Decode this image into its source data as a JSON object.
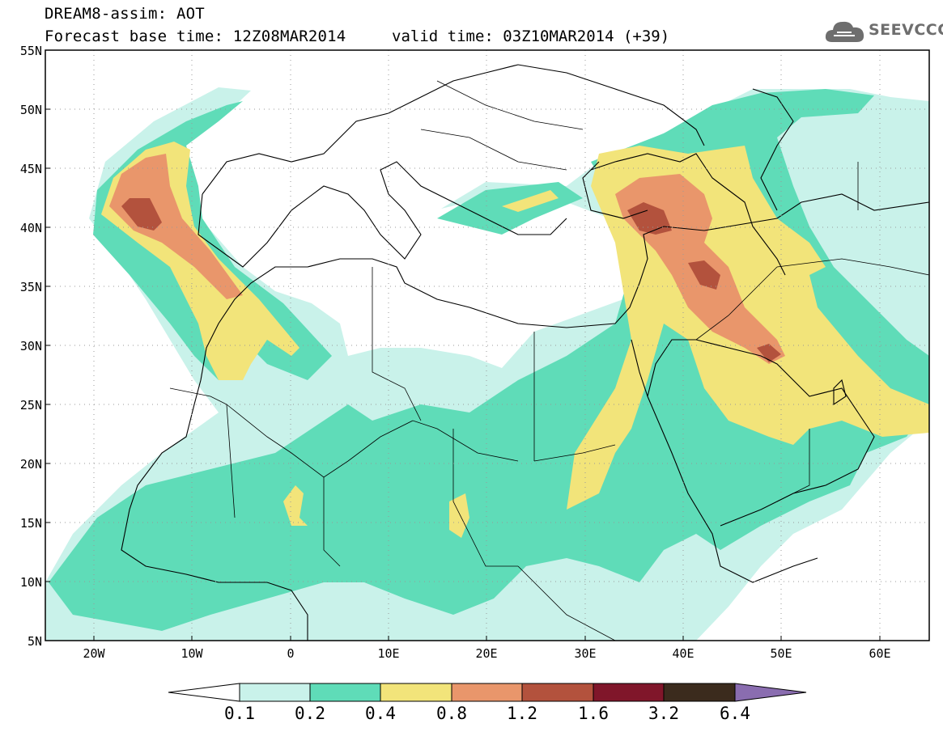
{
  "header": {
    "title": "DREAM8-assim: AOT",
    "base_time": "Forecast base time: 12Z08MAR2014",
    "valid_time": "valid time: 03Z10MAR2014 (+39)"
  },
  "logo": {
    "text": "SEEVCCC",
    "icon": "cloud-icon"
  },
  "map": {
    "lat_labels": [
      "55N",
      "50N",
      "45N",
      "40N",
      "35N",
      "30N",
      "25N",
      "20N",
      "15N",
      "10N",
      "5N"
    ],
    "lon_labels": [
      "20W",
      "10W",
      "0",
      "10E",
      "20E",
      "30E",
      "40E",
      "50E",
      "60E"
    ]
  },
  "colorbar": {
    "labels": [
      "0.1",
      "0.2",
      "0.4",
      "0.8",
      "1.2",
      "1.6",
      "3.2",
      "6.4"
    ],
    "colors": [
      "#ffffff",
      "#c9f2ea",
      "#5fdcb8",
      "#f2e47a",
      "#e9966b",
      "#b3523d",
      "#80162a",
      "#3b2b1d",
      "#8a6db0"
    ]
  }
}
